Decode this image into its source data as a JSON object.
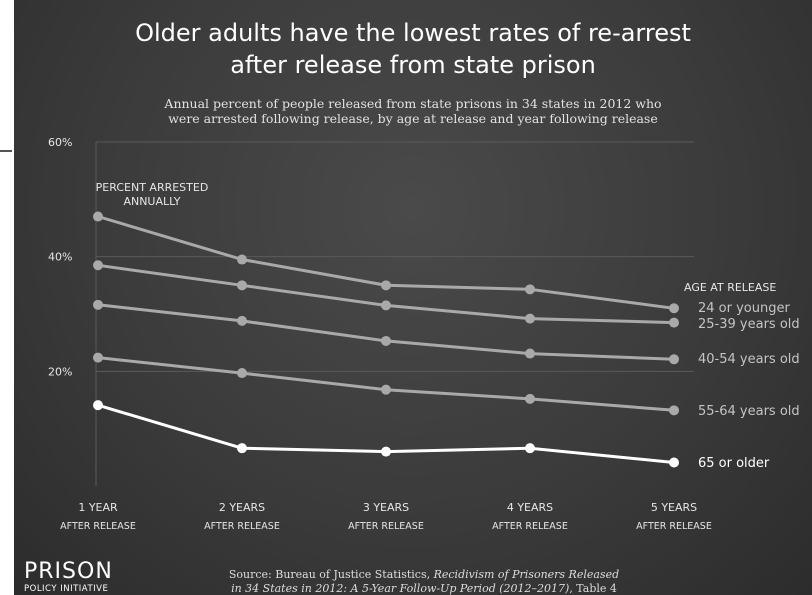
{
  "header": {
    "title_line1": "Older adults have the lowest rates of re-arrest",
    "title_line2": "after release from state prison",
    "subtitle_line1": "Annual percent of people released from state prisons in 34 states in 2012 who",
    "subtitle_line2": "were arrested following release, by age at release and year following release"
  },
  "footer": {
    "source_prefix": "Source: Bureau of Justice Statistics, ",
    "source_italic_1": "Recidivism of Prisoners Released",
    "source_italic_2": "in 34 States in 2012: A 5-Year Follow-Up Period (2012–2017)",
    "source_suffix": ", Table 4",
    "logo_line1": "PRISON",
    "logo_line2": "POLICY INITIATIVE"
  },
  "chart_data": {
    "type": "line",
    "title": "Older adults have the lowest rates of re-arrest after release from state prison",
    "subtitle": "Annual percent of people released from state prisons in 34 states in 2012 who were arrested following release, by age at release and year following release",
    "annotation_line1": "PERCENT ARRESTED",
    "annotation_line2": "ANNUALLY",
    "legend_title": "AGE AT RELEASE",
    "legend_placement": "right",
    "categories": [
      {
        "line1": "1 YEAR",
        "line2": "AFTER RELEASE"
      },
      {
        "line1": "2 YEARS",
        "line2": "AFTER RELEASE"
      },
      {
        "line1": "3 YEARS",
        "line2": "AFTER RELEASE"
      },
      {
        "line1": "4 YEARS",
        "line2": "AFTER RELEASE"
      },
      {
        "line1": "5 YEARS",
        "line2": "AFTER RELEASE"
      }
    ],
    "ylim": [
      0,
      60
    ],
    "yticks": [
      20,
      40,
      60
    ],
    "ytick_labels": [
      "20%",
      "40%",
      "60%"
    ],
    "grid": true,
    "series": [
      {
        "name": "24 or younger",
        "values": [
          47,
          39.5,
          35,
          34.3,
          31
        ],
        "color": "#a9a9a9"
      },
      {
        "name": "25-39 years old",
        "values": [
          38.5,
          35,
          31.5,
          29.2,
          28.5
        ],
        "color": "#a9a9a9"
      },
      {
        "name": "40-54 years old",
        "values": [
          31.6,
          28.8,
          25.3,
          23.1,
          22.1
        ],
        "color": "#a9a9a9"
      },
      {
        "name": "55-64 years old",
        "values": [
          22.4,
          19.7,
          16.8,
          15.2,
          13.2
        ],
        "color": "#a9a9a9"
      },
      {
        "name": "65 or older",
        "values": [
          14.1,
          6.6,
          6.0,
          6.6,
          4.1
        ],
        "color": "#ffffff"
      }
    ],
    "colors": {
      "grid": "#5a5a5a",
      "axis_text": "#e6e6e6",
      "highlight": "#ffffff",
      "muted": "#c4c4c4"
    }
  }
}
